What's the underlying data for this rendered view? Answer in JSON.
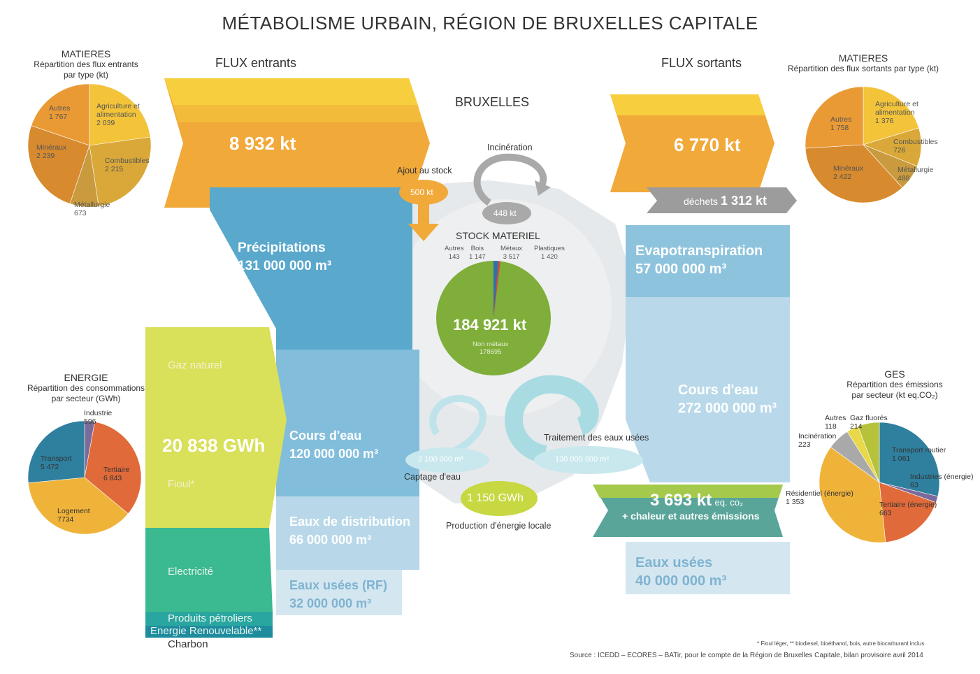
{
  "title": "MÉTABOLISME URBAIN,  RÉGION DE BRUXELLES CAPITALE",
  "center": {
    "city": "BRUXELLES",
    "incineration_label": "Incinération",
    "incineration_value": "448 kt",
    "stock_add_label": "Ajout au stock",
    "stock_add_value": "500 kt",
    "stock_title": "STOCK MATERIEL",
    "stock_total": "184 921 kt",
    "stock_main_label": "Non métaux",
    "stock_main_value": "178695",
    "stock_parts": [
      {
        "label": "Autres",
        "value": "143"
      },
      {
        "label": "Bois",
        "value": "1 147"
      },
      {
        "label": "Métaux",
        "value": "3 517"
      },
      {
        "label": "Plastiques",
        "value": "1 420"
      }
    ],
    "captage_value": "2 100 000 m³",
    "captage_label": "Captage d'eau",
    "traitement_label": "Traitement des eaux usées",
    "traitement_value": "130 000 000 m³",
    "local_energy_value": "1 150 GWh",
    "local_energy_label": "Production d'énergie locale"
  },
  "inputs": {
    "header": "FLUX entrants",
    "materials_total": "8 932 kt",
    "precipitations_label": "Précipitations",
    "precipitations_value": "131 000 000 m³",
    "energy_total": "20 838 GWh",
    "energy_items": [
      "Gaz naturel",
      "Fioul*",
      "Electricité",
      "Produits pétroliers",
      "Energie Renouvelable**",
      "Charbon"
    ],
    "water_course_label": "Cours d'eau",
    "water_course_value": "120 000 000 m³",
    "distribution_label": "Eaux de distribution",
    "distribution_value": "66 000 000 m³",
    "wastewater_label": "Eaux usées (RF)",
    "wastewater_value": "32 000 000 m³"
  },
  "outputs": {
    "header": "FLUX sortants",
    "materials_total": "6 770 kt",
    "waste_label": "déchets",
    "waste_value": "1 312 kt",
    "evapo_label": "Evapotranspiration",
    "evapo_value": "57 000 000 m³",
    "water_course_label": "Cours d'eau",
    "water_course_value": "272 000 000 m³",
    "co2_value": "3 693 kt",
    "co2_unit": "eq. co₂",
    "co2_extra": "+ chaleur et autres émissions",
    "wastewater_label": "Eaux usées",
    "wastewater_value": "40 000 000 m³"
  },
  "pie_in": {
    "title": "MATIERES",
    "subtitle1": "Répartition des flux entrants",
    "subtitle2": "par type (kt)",
    "slices": [
      {
        "label": "Agriculture et alimentation",
        "value": 2039,
        "value_text": "2 039",
        "color": "#f3c33a"
      },
      {
        "label": "Combustibles",
        "value": 2215,
        "value_text": "2 215",
        "color": "#d9a838"
      },
      {
        "label": "Métallurgie",
        "value": 673,
        "value_text": "673",
        "color": "#c99a3e"
      },
      {
        "label": "Minéraux",
        "value": 2239,
        "value_text": "2 239",
        "color": "#d78a2e"
      },
      {
        "label": "Autres",
        "value": 1767,
        "value_text": "1 767",
        "color": "#ea9a35"
      }
    ]
  },
  "pie_out": {
    "title": "MATIERES",
    "subtitle": "Répartition des flux sortants par type (kt)",
    "slices": [
      {
        "label": "Agriculture et alimentation",
        "value": 1376,
        "value_text": "1 376",
        "color": "#f3c33a"
      },
      {
        "label": "Combustibles",
        "value": 726,
        "value_text": "726",
        "color": "#d9a838"
      },
      {
        "label": "Métallurgie",
        "value": 488,
        "value_text": "488",
        "color": "#c99a3e"
      },
      {
        "label": "Minéraux",
        "value": 2422,
        "value_text": "2 422",
        "color": "#d78a2e"
      },
      {
        "label": "Autres",
        "value": 1758,
        "value_text": "1 758",
        "color": "#ea9a35"
      }
    ]
  },
  "pie_energy": {
    "title": "ENERGIE",
    "subtitle1": "Répartition des consommations",
    "subtitle2": "par secteur (GWh)",
    "slices": [
      {
        "label": "Industrie",
        "value": 596,
        "value_text": "596",
        "color": "#7a6b9a"
      },
      {
        "label": "Tertiaire",
        "value": 6843,
        "value_text": "6 843",
        "color": "#e06a3a"
      },
      {
        "label": "Logement",
        "value": 7734,
        "value_text": "7734",
        "color": "#f0b33a"
      },
      {
        "label": "Transport",
        "value": 5472,
        "value_text": "5 472",
        "color": "#2f7f9e"
      }
    ]
  },
  "pie_ges": {
    "title": "GES",
    "subtitle1": "Répartition des émissions",
    "subtitle2": "par secteur (kt eq.CO₂)",
    "slices": [
      {
        "label": "Transport routier",
        "value": 1061,
        "value_text": "1 061",
        "color": "#2f7f9e"
      },
      {
        "label": "Industries (énergie)",
        "value": 63,
        "value_text": "63",
        "color": "#7a6b9a"
      },
      {
        "label": "Tertiaire (énergie)",
        "value": 663,
        "value_text": "663",
        "color": "#e06a3a"
      },
      {
        "label": "Résidentiel (énergie)",
        "value": 1353,
        "value_text": "1 353",
        "color": "#f0b33a"
      },
      {
        "label": "Incinération",
        "value": 223,
        "value_text": "223",
        "color": "#a9a9a9"
      },
      {
        "label": "Autres",
        "value": 118,
        "value_text": "118",
        "color": "#e8d84a"
      },
      {
        "label": "Gaz fluorés",
        "value": 214,
        "value_text": "214",
        "color": "#b5c23a"
      }
    ]
  },
  "footnote": "* Fioul léger, ** biodiesel, bioéthanol, bois, autre biocarburant inclus",
  "source": "Source : ICEDD – ECORES – BATir, pour le compte de la Région de Bruxelles Capitale, bilan provisoire avril 2014"
}
